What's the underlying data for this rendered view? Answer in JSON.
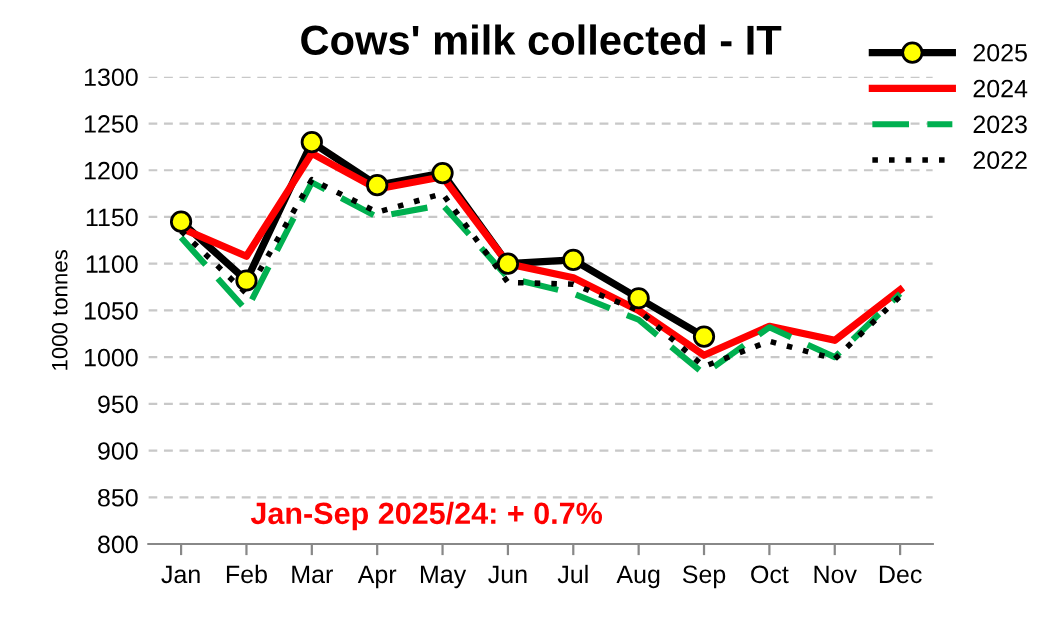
{
  "chart_data": {
    "type": "line",
    "title": "Cows' milk collected - IT",
    "ylabel": "1000 tonnes",
    "categories": [
      "Jan",
      "Feb",
      "Mar",
      "Apr",
      "May",
      "Jun",
      "Jul",
      "Aug",
      "Sep",
      "Oct",
      "Nov",
      "Dec"
    ],
    "series": [
      {
        "name": "2025",
        "color": "#000000",
        "line_style": "solid",
        "marker": "circle",
        "values": [
          1145,
          1082,
          1230,
          1184,
          1197,
          1100,
          1104,
          1063,
          1022,
          null,
          null,
          null
        ]
      },
      {
        "name": "2024",
        "color": "#ff0000",
        "line_style": "solid",
        "marker": "none",
        "values": [
          1138,
          1108,
          1218,
          1180,
          1193,
          1100,
          1085,
          1050,
          1002,
          1033,
          1018,
          1072
        ]
      },
      {
        "name": "2023",
        "color": "#00b050",
        "line_style": "dashed",
        "marker": "none",
        "values": [
          1128,
          1050,
          1187,
          1150,
          1163,
          1085,
          1068,
          1040,
          982,
          1032,
          1000,
          1068
        ]
      },
      {
        "name": "2022",
        "color": "#000000",
        "line_style": "dotted",
        "marker": "none",
        "values": [
          1135,
          1068,
          1190,
          1155,
          1175,
          1080,
          1078,
          1050,
          990,
          1017,
          998,
          1065
        ]
      }
    ],
    "ylim": [
      800,
      1300
    ],
    "yticks": [
      800,
      850,
      900,
      950,
      1000,
      1050,
      1100,
      1150,
      1200,
      1250,
      1300
    ],
    "grid": "y",
    "legend": "top right",
    "annotations": [
      "Jan-Sep 2025/24: + 0.7%"
    ]
  }
}
